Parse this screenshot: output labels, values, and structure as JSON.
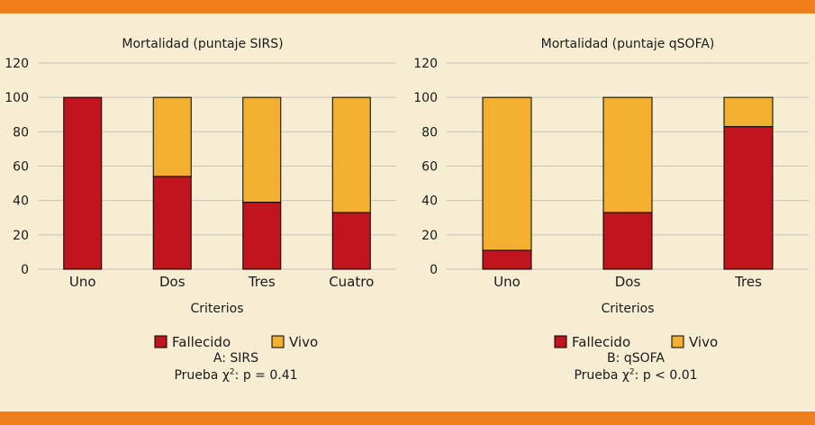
{
  "colors": {
    "background": "#f6edd3",
    "band": "#ef7f1a",
    "fallecido": "#c0141f",
    "vivo": "#f3af30",
    "grid": "#c9c3b4"
  },
  "chart_data": [
    {
      "type": "bar",
      "stacked": true,
      "title": "Mortalidad (puntaje SIRS)",
      "xlabel": "Criterios",
      "ylabel": "",
      "ylim": [
        0,
        120
      ],
      "yticks": [
        0,
        20,
        40,
        60,
        80,
        100,
        120
      ],
      "categories": [
        "Uno",
        "Dos",
        "Tres",
        "Cuatro"
      ],
      "series": [
        {
          "name": "Fallecido",
          "color": "#c0141f",
          "values": [
            100,
            54,
            39,
            33
          ]
        },
        {
          "name": "Vivo",
          "color": "#f3af30",
          "values": [
            0,
            46,
            61,
            67
          ]
        }
      ],
      "legend": [
        "Fallecido",
        "Vivo"
      ],
      "caption_label": "A: SIRS",
      "test_prefix": "Prueba χ",
      "test_sup": "2",
      "test_suffix": ": p = 0.41"
    },
    {
      "type": "bar",
      "stacked": true,
      "title": "Mortalidad (puntaje qSOFA)",
      "xlabel": "Criterios",
      "ylabel": "",
      "ylim": [
        0,
        120
      ],
      "yticks": [
        0,
        20,
        40,
        60,
        80,
        100,
        120
      ],
      "categories": [
        "Uno",
        "Dos",
        "Tres"
      ],
      "series": [
        {
          "name": "Fallecido",
          "color": "#c0141f",
          "values": [
            11,
            33,
            83
          ]
        },
        {
          "name": "Vivo",
          "color": "#f3af30",
          "values": [
            89,
            67,
            17
          ]
        }
      ],
      "legend": [
        "Fallecido",
        "Vivo"
      ],
      "caption_label": "B: qSOFA",
      "test_prefix": "Prueba χ",
      "test_sup": "2",
      "test_suffix": ": p < 0.01"
    }
  ]
}
